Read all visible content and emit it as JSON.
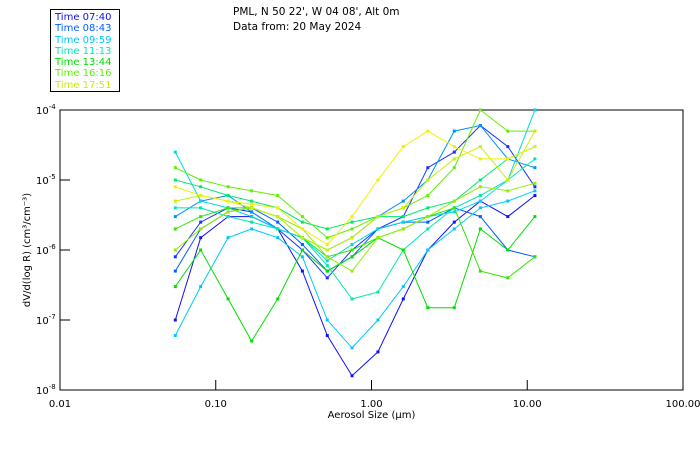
{
  "header": {
    "line1": "PML, N 50 22', W 04 08', Alt 0m",
    "line2": "Data from: 20 May 2024"
  },
  "legend": [
    {
      "label": "Time 07:40",
      "color": "#1010ff"
    },
    {
      "label": "Time 08:43",
      "color": "#0060ff"
    },
    {
      "label": "Time 09:59",
      "color": "#00c8ff"
    },
    {
      "label": "Time 11:13",
      "color": "#00e8b0"
    },
    {
      "label": "Time 13:44",
      "color": "#00e000"
    },
    {
      "label": "Time 16:16",
      "color": "#60f000"
    },
    {
      "label": "Time 17:51",
      "color": "#c8f000"
    }
  ],
  "chart_data": {
    "type": "line",
    "xlabel": "Aerosol Size (µm)",
    "ylabel": "dV/d(log R) (cm³/cm⁻³)",
    "xscale": "log",
    "yscale": "log",
    "xlim": [
      0.01,
      100
    ],
    "ylim": [
      1e-08,
      0.0001
    ],
    "xticks": [
      {
        "v": 0.01,
        "label": "0.01"
      },
      {
        "v": 0.1,
        "label": "0.10"
      },
      {
        "v": 1,
        "label": "1.00"
      },
      {
        "v": 10,
        "label": "10.00"
      },
      {
        "v": 100,
        "label": "100.00"
      }
    ],
    "yticks": [
      {
        "v": 0.0001,
        "base": "10",
        "exp": "-4"
      },
      {
        "v": 1e-05,
        "base": "10",
        "exp": "-5"
      },
      {
        "v": 1e-06,
        "base": "10",
        "exp": "-6"
      },
      {
        "v": 1e-07,
        "base": "10",
        "exp": "-7"
      },
      {
        "v": 1e-08,
        "base": "10",
        "exp": "-8"
      }
    ],
    "x": [
      0.055,
      0.08,
      0.12,
      0.17,
      0.25,
      0.36,
      0.52,
      0.75,
      1.1,
      1.6,
      2.3,
      3.4,
      5.0,
      7.5,
      11.2
    ],
    "series": [
      {
        "color": "#1010ff",
        "values": [
          1e-07,
          1.5e-06,
          3e-06,
          3e-06,
          2e-06,
          5e-07,
          6e-08,
          1.6e-08,
          3.5e-08,
          2e-07,
          1e-06,
          2.5e-06,
          5e-06,
          3e-06,
          6e-06
        ]
      },
      {
        "color": "#1830ff",
        "values": [
          8e-07,
          2.5e-06,
          4e-06,
          3.5e-06,
          2e-06,
          1e-06,
          4e-07,
          1e-06,
          2e-06,
          3e-06,
          1.5e-05,
          2.5e-05,
          6e-05,
          3e-05,
          8e-06
        ]
      },
      {
        "color": "#0060ff",
        "values": [
          5e-07,
          2e-06,
          3.5e-06,
          4e-06,
          2.5e-06,
          1.2e-06,
          5e-07,
          8e-07,
          2e-06,
          2.5e-06,
          2.5e-06,
          4e-06,
          3e-06,
          1e-06,
          8e-07
        ]
      },
      {
        "color": "#0090ff",
        "values": [
          3e-06,
          5e-06,
          6e-06,
          3.5e-06,
          2e-06,
          1.5e-06,
          1e-06,
          1.5e-06,
          3e-06,
          5e-06,
          1e-05,
          5e-05,
          6e-05,
          2e-05,
          1.5e-05
        ]
      },
      {
        "color": "#00c8ff",
        "values": [
          6e-08,
          3e-07,
          1.5e-06,
          2e-06,
          1.5e-06,
          8e-07,
          1e-07,
          4e-08,
          1e-07,
          3e-07,
          1e-06,
          2e-06,
          4e-06,
          5e-06,
          7e-06
        ]
      },
      {
        "color": "#00d8e0",
        "values": [
          2.5e-05,
          5e-06,
          4e-06,
          3e-06,
          2e-06,
          1.5e-06,
          7e-07,
          1.2e-06,
          2e-06,
          2.5e-06,
          3e-06,
          3.5e-06,
          5e-06,
          1e-05,
          0.0001
        ]
      },
      {
        "color": "#00e8b0",
        "values": [
          4e-06,
          4e-06,
          3e-06,
          2.5e-06,
          2e-06,
          1.5e-06,
          6e-07,
          2e-07,
          2.5e-07,
          1e-06,
          2e-06,
          4e-06,
          6e-06,
          1e-05,
          2e-05
        ]
      },
      {
        "color": "#00e870",
        "values": [
          1e-05,
          8e-06,
          6e-06,
          5e-06,
          4e-06,
          2.5e-06,
          2e-06,
          2.5e-06,
          3e-06,
          3e-06,
          4e-06,
          5e-06,
          1e-05,
          2e-05,
          3e-05
        ]
      },
      {
        "color": "#00e000",
        "values": [
          3e-07,
          1e-06,
          2e-07,
          5e-08,
          2e-07,
          1e-06,
          5e-07,
          8e-07,
          1.5e-06,
          1e-06,
          1.5e-07,
          1.5e-07,
          2e-06,
          1e-06,
          3e-06
        ]
      },
      {
        "color": "#30e800",
        "values": [
          2e-06,
          3e-06,
          4e-06,
          4e-06,
          3e-06,
          1.5e-06,
          8e-07,
          1e-06,
          1.5e-06,
          2e-06,
          3e-06,
          4e-06,
          5e-07,
          4e-07,
          8e-07
        ]
      },
      {
        "color": "#60f000",
        "values": [
          1.5e-05,
          1e-05,
          8e-06,
          7e-06,
          6e-06,
          3e-06,
          1.5e-06,
          2e-06,
          3e-06,
          4e-06,
          6e-06,
          1.5e-05,
          0.0001,
          5e-05,
          5e-05
        ]
      },
      {
        "color": "#90f000",
        "values": [
          1e-06,
          2e-06,
          3.5e-06,
          4e-06,
          3e-06,
          2e-06,
          8e-07,
          5e-07,
          1.5e-06,
          2e-06,
          3e-06,
          5e-06,
          8e-06,
          7e-06,
          9e-06
        ]
      },
      {
        "color": "#c8f000",
        "values": [
          5e-06,
          6e-06,
          5e-06,
          4e-06,
          3e-06,
          1.5e-06,
          1e-06,
          1.5e-06,
          3e-06,
          4e-06,
          1e-05,
          2e-05,
          3e-05,
          1e-05,
          5e-05
        ]
      },
      {
        "color": "#f0f000",
        "values": [
          8e-06,
          6e-06,
          5e-06,
          4.5e-06,
          4e-06,
          2e-06,
          1.2e-06,
          3e-06,
          1e-05,
          3e-05,
          5e-05,
          3e-05,
          2e-05,
          2e-05,
          3e-05
        ]
      }
    ]
  }
}
